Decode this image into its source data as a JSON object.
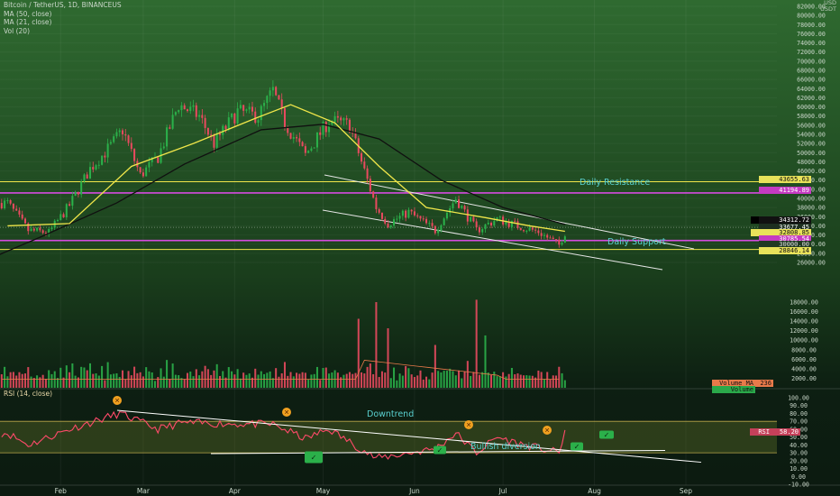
{
  "header": {
    "title": "Bitcoin / TetherUS, 1D, BINANCEUS",
    "ma50": "MA (50, close)",
    "ma21": "MA (21, close)",
    "vol": "Vol (20)",
    "rsi": "RSI (14, close)",
    "cur_top": "USD",
    "cur_bottom": "USDT"
  },
  "tags": {
    "t1": "43655.63",
    "t2": "41194.89",
    "ma_lbl": "MA",
    "t3": "34312.72",
    "t4": "33677.45",
    "t5": "32808.85",
    "t6": "30785.54",
    "t7": "30000.00",
    "t8": "28846.14",
    "vol_ma_lbl": "Volume MA",
    "vol_ma_val": "236",
    "vol_lbl": "Volume",
    "rsi_lbl": "RSI",
    "rsi_val": "58.20"
  },
  "annotations": {
    "daily_resistance": "Daily Resistance",
    "daily_support": "Daily Support",
    "downtrend": "Downtrend",
    "bullish_divergence": "Bullish diversion"
  },
  "colors": {
    "bull": "#2bb04a",
    "bear": "#e84a5f",
    "ma21": "#f0e64a",
    "ma50": "#101010",
    "rsi": "#ff4a6a",
    "resistance": "#d64be0",
    "support_band": "#f0e64a",
    "marker_x": "#f0a020",
    "marker_check": "#2bb04a"
  },
  "chart_data": {
    "type": "candlestick",
    "title": "Bitcoin / TetherUS, 1D, BINANCEUS",
    "date_ticks": [
      "Feb",
      "Mar",
      "Apr",
      "May",
      "Jun",
      "Jul",
      "Aug",
      "Sep"
    ],
    "price_ticks": [
      26000,
      28000,
      30000,
      32000,
      34000,
      36000,
      38000,
      40000,
      42000,
      44000,
      46000,
      48000,
      50000,
      52000,
      54000,
      56000,
      58000,
      60000,
      62000,
      64000,
      66000,
      68000,
      70000,
      72000,
      74000,
      76000,
      78000,
      80000,
      82000
    ],
    "volume_ticks": [
      2000,
      4000,
      6000,
      8000,
      10000,
      12000,
      14000,
      16000,
      18000
    ],
    "rsi_ticks": [
      -10,
      0,
      10,
      20,
      30,
      40,
      50,
      60,
      70,
      80,
      90,
      100
    ],
    "close_path": [
      [
        "2021-01-14",
        39000
      ],
      [
        "2021-01-21",
        33000
      ],
      [
        "2021-01-28",
        32500
      ],
      [
        "2021-02-04",
        38500
      ],
      [
        "2021-02-11",
        46500
      ],
      [
        "2021-02-18",
        51500
      ],
      [
        "2021-02-22",
        55000
      ],
      [
        "2021-02-28",
        45000
      ],
      [
        "2021-03-06",
        49000
      ],
      [
        "2021-03-13",
        60500
      ],
      [
        "2021-03-20",
        58000
      ],
      [
        "2021-03-25",
        52000
      ],
      [
        "2021-04-02",
        59000
      ],
      [
        "2021-04-09",
        58000
      ],
      [
        "2021-04-14",
        63500
      ],
      [
        "2021-04-18",
        56500
      ],
      [
        "2021-04-25",
        49500
      ],
      [
        "2021-05-03",
        57000
      ],
      [
        "2021-05-10",
        56000
      ],
      [
        "2021-05-13",
        50000
      ],
      [
        "2021-05-19",
        38000
      ],
      [
        "2021-05-23",
        34500
      ],
      [
        "2021-05-30",
        37000
      ],
      [
        "2021-06-08",
        33000
      ],
      [
        "2021-06-15",
        40000
      ],
      [
        "2021-06-22",
        33000
      ],
      [
        "2021-06-29",
        35500
      ],
      [
        "2021-07-06",
        34000
      ],
      [
        "2021-07-13",
        32700
      ],
      [
        "2021-07-20",
        29800
      ],
      [
        "2021-07-22",
        32500
      ]
    ],
    "ma21_path": [
      [
        "2021-01-14",
        34000
      ],
      [
        "2021-02-04",
        34500
      ],
      [
        "2021-02-25",
        47000
      ],
      [
        "2021-03-18",
        52000
      ],
      [
        "2021-04-08",
        57500
      ],
      [
        "2021-04-20",
        60500
      ],
      [
        "2021-05-05",
        56500
      ],
      [
        "2021-05-20",
        47000
      ],
      [
        "2021-06-05",
        38000
      ],
      [
        "2021-06-25",
        35800
      ],
      [
        "2021-07-10",
        34000
      ],
      [
        "2021-07-22",
        32808.85
      ]
    ],
    "ma50_path": [
      [
        "2021-01-05",
        26000
      ],
      [
        "2021-01-25",
        31500
      ],
      [
        "2021-02-20",
        39000
      ],
      [
        "2021-03-15",
        47500
      ],
      [
        "2021-04-10",
        55000
      ],
      [
        "2021-05-01",
        56200
      ],
      [
        "2021-05-20",
        53000
      ],
      [
        "2021-06-10",
        44000
      ],
      [
        "2021-07-01",
        38000
      ],
      [
        "2021-07-22",
        34312.72
      ]
    ],
    "volume_peaks": [
      [
        "2021-05-13",
        14500
      ],
      [
        "2021-05-19",
        18000
      ],
      [
        "2021-05-23",
        12500
      ],
      [
        "2021-06-08",
        9000
      ],
      [
        "2021-06-22",
        18500
      ],
      [
        "2021-06-25",
        11000
      ],
      [
        "2021-07-22",
        1600
      ]
    ],
    "rsi_path": [
      [
        "2021-01-14",
        55
      ],
      [
        "2021-01-21",
        40
      ],
      [
        "2021-02-04",
        60
      ],
      [
        "2021-02-21",
        80
      ],
      [
        "2021-03-06",
        60
      ],
      [
        "2021-03-14",
        68
      ],
      [
        "2021-04-14",
        66
      ],
      [
        "2021-04-25",
        48
      ],
      [
        "2021-05-03",
        60
      ],
      [
        "2021-05-19",
        23
      ],
      [
        "2021-06-08",
        35
      ],
      [
        "2021-06-15",
        55
      ],
      [
        "2021-06-22",
        30
      ],
      [
        "2021-06-29",
        50
      ],
      [
        "2021-07-06",
        42
      ],
      [
        "2021-07-20",
        30
      ],
      [
        "2021-07-22",
        58.2
      ]
    ],
    "levels": {
      "daily_resistance": 43655.63,
      "resistance_line": 41194.89,
      "support_line": 30785.54,
      "daily_support": 28846.14,
      "reference": 30000
    },
    "last_price": 33677.45,
    "volume_ma": 236,
    "rsi_value": 58.2
  }
}
